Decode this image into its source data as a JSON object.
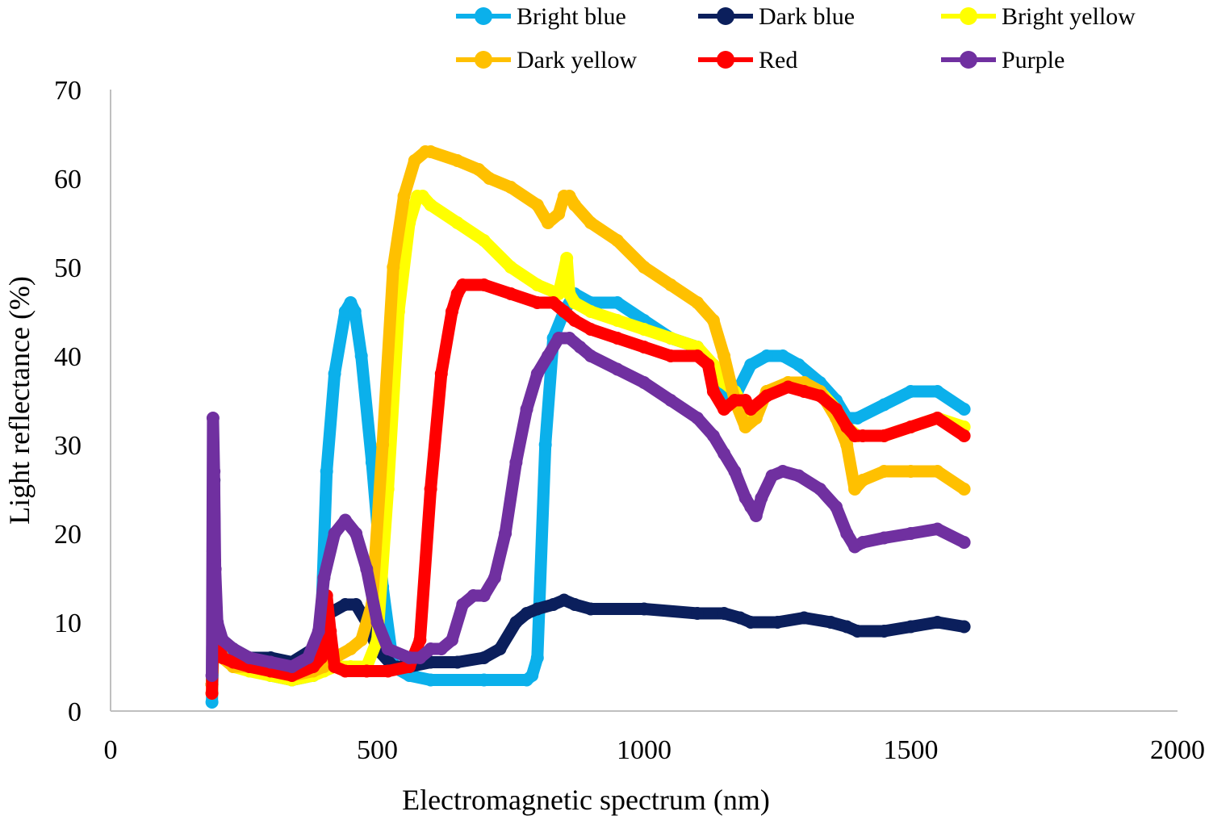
{
  "chart_data": {
    "type": "line",
    "title": "",
    "xlabel": "Electromagnetic spectrum (nm)",
    "ylabel": "Light reflectance (%)",
    "xlim": [
      0,
      2000
    ],
    "ylim": [
      0,
      70
    ],
    "x_ticks": [
      0,
      500,
      1000,
      1500,
      2000
    ],
    "y_ticks": [
      0,
      10,
      20,
      30,
      40,
      50,
      60,
      70
    ],
    "grid": false,
    "legend_position": "top",
    "series": [
      {
        "name": "Bright blue",
        "color": "#0bb0eb",
        "x": [
          190,
          195,
          200,
          210,
          230,
          260,
          300,
          340,
          380,
          395,
          405,
          420,
          440,
          450,
          458,
          470,
          490,
          510,
          530,
          560,
          600,
          700,
          780,
          790,
          800,
          815,
          830,
          850,
          870,
          900,
          950,
          1000,
          1050,
          1100,
          1130,
          1150,
          1175,
          1200,
          1230,
          1260,
          1290,
          1330,
          1360,
          1380,
          1400,
          1450,
          1500,
          1550,
          1600
        ],
        "y": [
          1,
          14,
          9,
          7,
          5,
          5,
          4,
          3.5,
          4,
          10,
          27,
          38,
          45,
          46,
          45,
          40,
          28,
          14,
          5,
          4,
          3.5,
          3.5,
          3.5,
          4,
          6,
          30,
          42,
          45,
          47,
          46,
          46,
          44,
          42,
          41,
          38,
          35,
          36,
          39,
          40,
          40,
          39,
          37,
          35,
          33,
          33,
          34.5,
          36,
          36,
          34
        ]
      },
      {
        "name": "Dark blue",
        "color": "#0b1f5c",
        "x": [
          190,
          192,
          194,
          196,
          200,
          210,
          230,
          260,
          300,
          340,
          380,
          410,
          440,
          460,
          480,
          500,
          530,
          560,
          600,
          650,
          700,
          730,
          760,
          780,
          800,
          830,
          850,
          870,
          900,
          1000,
          1100,
          1150,
          1180,
          1200,
          1250,
          1300,
          1350,
          1380,
          1400,
          1450,
          1500,
          1550,
          1600
        ],
        "y": [
          3,
          18,
          26,
          12,
          9,
          8,
          7,
          6,
          6,
          5.5,
          7,
          11,
          12,
          12,
          10,
          7,
          5,
          5,
          5.5,
          5.5,
          6,
          7,
          10,
          11,
          11.5,
          12,
          12.5,
          12,
          11.5,
          11.5,
          11,
          11,
          10.5,
          10,
          10,
          10.5,
          10,
          9.5,
          9,
          9,
          9.5,
          10,
          9.5
        ]
      },
      {
        "name": "Bright yellow",
        "color": "#ffff00",
        "x": [
          190,
          195,
          200,
          210,
          230,
          260,
          300,
          340,
          380,
          400,
          420,
          450,
          480,
          500,
          520,
          540,
          560,
          575,
          585,
          600,
          650,
          700,
          750,
          800,
          840,
          855,
          860,
          870,
          900,
          950,
          1000,
          1050,
          1100,
          1130,
          1150,
          1170,
          1190,
          1210,
          1230,
          1270,
          1300,
          1330,
          1360,
          1380,
          1400,
          1450,
          1500,
          1550,
          1600
        ],
        "y": [
          2,
          15,
          9,
          6,
          5,
          4.5,
          4,
          3.5,
          4,
          4.5,
          5,
          5,
          5,
          8,
          25,
          45,
          55,
          58,
          58,
          57,
          55,
          53,
          50,
          48,
          47,
          51,
          47,
          46,
          45,
          44,
          43,
          42,
          41,
          39,
          37,
          36,
          34,
          33,
          36,
          37,
          37,
          36,
          34,
          32,
          31,
          31,
          32,
          33,
          32
        ]
      },
      {
        "name": "Dark yellow",
        "color": "#ffc000",
        "x": [
          190,
          195,
          200,
          210,
          230,
          260,
          300,
          340,
          380,
          400,
          420,
          450,
          470,
          490,
          510,
          530,
          550,
          570,
          590,
          600,
          650,
          690,
          710,
          750,
          800,
          820,
          840,
          850,
          860,
          870,
          900,
          950,
          1000,
          1050,
          1100,
          1130,
          1150,
          1170,
          1190,
          1210,
          1230,
          1270,
          1300,
          1330,
          1360,
          1380,
          1395,
          1410,
          1450,
          1500,
          1550,
          1600
        ],
        "y": [
          3,
          13,
          8,
          6,
          5,
          5,
          4.5,
          4,
          4.5,
          5,
          6,
          7,
          8,
          12,
          30,
          50,
          58,
          62,
          63,
          63,
          62,
          61,
          60,
          59,
          57,
          55,
          56,
          58,
          58,
          57,
          55,
          53,
          50,
          48,
          46,
          44,
          40,
          35,
          32,
          33,
          36,
          37,
          37,
          36,
          33,
          30,
          25,
          26,
          27,
          27,
          27,
          25
        ]
      },
      {
        "name": "Red",
        "color": "#ff0000",
        "x": [
          190,
          195,
          200,
          210,
          230,
          260,
          300,
          340,
          380,
          395,
          405,
          412,
          420,
          440,
          480,
          520,
          560,
          580,
          600,
          620,
          640,
          650,
          660,
          700,
          750,
          800,
          830,
          850,
          870,
          900,
          950,
          1000,
          1050,
          1100,
          1120,
          1130,
          1150,
          1170,
          1190,
          1200,
          1230,
          1270,
          1300,
          1330,
          1360,
          1380,
          1395,
          1410,
          1450,
          1500,
          1550,
          1600
        ],
        "y": [
          2,
          17,
          8,
          6,
          5.5,
          5,
          4.5,
          4,
          5,
          6,
          13,
          9,
          5,
          4.5,
          4.5,
          4.5,
          5,
          8,
          25,
          38,
          45,
          47,
          48,
          48,
          47,
          46,
          46,
          45,
          44,
          43,
          42,
          41,
          40,
          40,
          39,
          36,
          34,
          35,
          35,
          34,
          35.5,
          36.5,
          36,
          35.5,
          34,
          32,
          31,
          31,
          31,
          32,
          33,
          31
        ]
      },
      {
        "name": "Purple",
        "color": "#7030a0",
        "x": [
          190,
          192,
          194,
          196,
          200,
          210,
          230,
          260,
          300,
          340,
          370,
          390,
          400,
          420,
          440,
          460,
          480,
          500,
          520,
          560,
          580,
          600,
          620,
          640,
          660,
          680,
          700,
          720,
          740,
          760,
          780,
          800,
          820,
          840,
          860,
          880,
          900,
          950,
          1000,
          1050,
          1100,
          1130,
          1150,
          1170,
          1190,
          1200,
          1210,
          1220,
          1240,
          1260,
          1290,
          1330,
          1360,
          1380,
          1395,
          1410,
          1450,
          1500,
          1550,
          1600
        ],
        "y": [
          4,
          33,
          27,
          16,
          10,
          8,
          7,
          6,
          5.5,
          5,
          6,
          9,
          15,
          20,
          21.5,
          20,
          16,
          10,
          7,
          6,
          6,
          7,
          7,
          8,
          12,
          13,
          13,
          15,
          20,
          28,
          34,
          38,
          40,
          42,
          42,
          41,
          40,
          38.5,
          37,
          35,
          33,
          31,
          29,
          27,
          24,
          23,
          22,
          24,
          26.5,
          27,
          26.5,
          25,
          23,
          20,
          18.5,
          19,
          19.5,
          20,
          20.5,
          19
        ]
      }
    ]
  }
}
